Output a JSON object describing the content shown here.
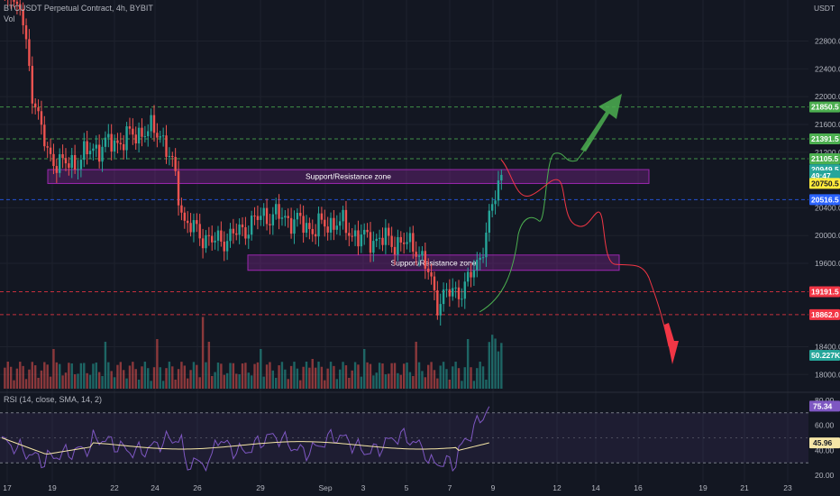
{
  "header": {
    "symbol_line": "BTCUSDT Perpetual Contract, 4h, BYBIT",
    "vol_label": "Vol",
    "currency": "USDT"
  },
  "chart_data": {
    "type": "candlestick",
    "interval": "4h",
    "x_labels": [
      "17",
      "19",
      "22",
      "24",
      "26",
      "29",
      "Sep",
      "3",
      "5",
      "7",
      "9",
      "12",
      "14",
      "16",
      "19",
      "21",
      "23"
    ],
    "y_ticks": [
      18000,
      18400,
      19600,
      20000,
      20400,
      21200,
      21600,
      22000,
      22400,
      22800
    ],
    "ylim": [
      17900,
      23300
    ],
    "price_tags": [
      {
        "value": 21850.5,
        "label": "21850.5",
        "bg": "#4caf50",
        "fg": "#ffffff"
      },
      {
        "value": 21391.5,
        "label": "21391.5",
        "bg": "#4caf50",
        "fg": "#ffffff"
      },
      {
        "value": 21105.5,
        "label": "21105.5",
        "bg": "#4caf50",
        "fg": "#ffffff"
      },
      {
        "value": 20949.5,
        "label": "20949.5",
        "bg": "#26a69a",
        "fg": "#ffffff"
      },
      {
        "value": 20860,
        "label": "49:47",
        "bg": "#26a69a",
        "fg": "#ffffff"
      },
      {
        "value": 20750.5,
        "label": "20750.5",
        "bg": "#ffeb3b",
        "fg": "#131722"
      },
      {
        "value": 20516.5,
        "label": "20516.5",
        "bg": "#2962ff",
        "fg": "#ffffff"
      },
      {
        "value": 19191.5,
        "label": "19191.5",
        "bg": "#f23645",
        "fg": "#ffffff"
      },
      {
        "value": 18862.0,
        "label": "18862.0",
        "bg": "#f23645",
        "fg": "#ffffff"
      },
      {
        "value": 18250,
        "label": "50.227K",
        "bg": "#26a69a",
        "fg": "#ffffff"
      }
    ],
    "hlines": [
      {
        "value": 21850.5,
        "color": "#4caf50"
      },
      {
        "value": 21391.5,
        "color": "#4caf50"
      },
      {
        "value": 21105.5,
        "color": "#4caf50"
      },
      {
        "value": 20516.5,
        "color": "#2962ff"
      },
      {
        "value": 19191.5,
        "color": "#f23645"
      },
      {
        "value": 18862.0,
        "color": "#f23645"
      }
    ],
    "zones": [
      {
        "label": "Support/Resistance zone",
        "from": 20750,
        "to": 20950
      },
      {
        "label": "Support/Resistance zone",
        "from": 19500,
        "to": 19720
      }
    ],
    "colors": {
      "up": "#26a69a",
      "down": "#ef5350",
      "bg": "#131722",
      "grid": "#1e222d",
      "zone": "#9c27b0",
      "rsi": "#7e57c2",
      "rsi_sma": "#f5e6a7"
    },
    "rsi": {
      "label": "RSI (14, close, SMA, 14, 2)",
      "y_ticks": [
        20,
        40,
        60,
        80
      ],
      "levels": [
        30,
        70
      ],
      "value_tags": [
        {
          "value": 75.34,
          "label": "75.34",
          "bg": "#7e57c2",
          "fg": "#ffffff"
        },
        {
          "value": 45.96,
          "label": "45.96",
          "bg": "#f5e6a7",
          "fg": "#131722"
        }
      ]
    }
  }
}
